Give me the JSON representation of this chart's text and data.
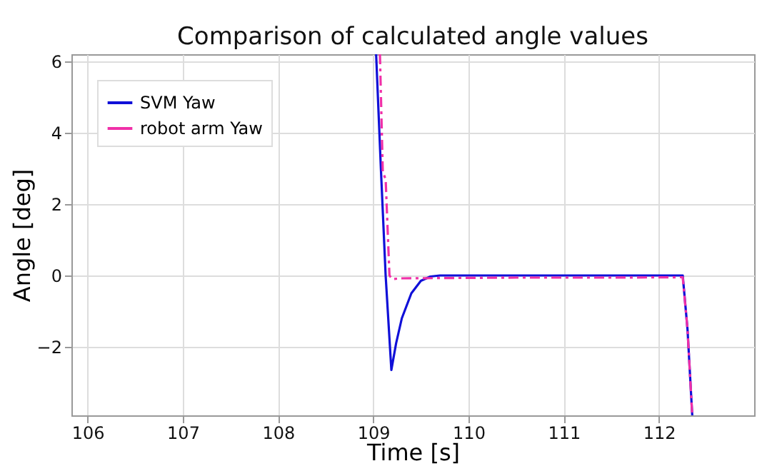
{
  "chart_data": {
    "type": "line",
    "title": "Comparison of calculated angle values",
    "xlabel": "Time [s]",
    "ylabel": "Angle [deg]",
    "xlim": [
      105.83,
      113.0
    ],
    "xticks": [
      106,
      107,
      108,
      109,
      110,
      111,
      112
    ],
    "ylim": [
      -3.92,
      6.2
    ],
    "yticks": [
      -2,
      0,
      2,
      4,
      6
    ],
    "grid": true,
    "legend": "top left",
    "series": [
      {
        "name": "SVM Yaw",
        "color": "#1010d8",
        "line_style": "solid",
        "x": [
          109.03,
          109.08,
          109.13,
          109.19,
          109.24,
          109.3,
          109.4,
          109.5,
          109.6,
          109.7,
          110.5,
          111.5,
          112.25,
          112.3,
          112.35
        ],
        "values": [
          6.2,
          3.0,
          0.0,
          -2.65,
          -1.9,
          -1.2,
          -0.5,
          -0.15,
          -0.03,
          0,
          0,
          0,
          0,
          -1.5,
          -3.92
        ]
      },
      {
        "name": "robot arm Yaw",
        "color": "#f030a8",
        "line_style": "dashed",
        "x": [
          109.07,
          109.1,
          109.13,
          109.17,
          109.2,
          109.3,
          110.5,
          111.5,
          112.25,
          112.3,
          112.35
        ],
        "values": [
          6.2,
          2.9,
          2.7,
          0.0,
          -0.1,
          -0.08,
          -0.06,
          -0.06,
          -0.05,
          -1.5,
          -3.92
        ]
      }
    ]
  }
}
